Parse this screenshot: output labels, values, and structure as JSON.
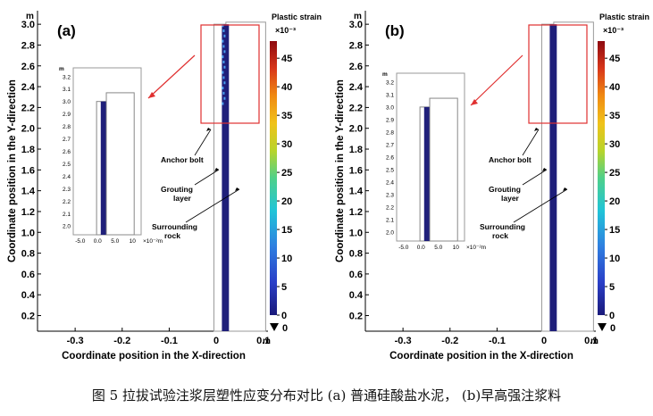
{
  "caption": "图 5 拉拔试验注浆层塑性应变分布对比 (a) 普通硅酸盐水泥，  (b)早高强注浆料",
  "chart_data": [
    {
      "type": "contour",
      "panel_label": "(a)",
      "xlabel": "Coordinate position in the X-direction",
      "ylabel": "Coordinate position in the Y-direction",
      "x_unit": "m",
      "y_unit": "m",
      "x_ticks": [
        "-0.3",
        "-0.2",
        "-0.1",
        "0",
        "0.1"
      ],
      "y_ticks": [
        "0.2",
        "0.4",
        "0.6",
        "0.8",
        "1.0",
        "1.2",
        "1.4",
        "1.6",
        "1.8",
        "2.0",
        "2.2",
        "2.4",
        "2.6",
        "2.8",
        "3.0"
      ],
      "xlim": [
        -0.38,
        0.11
      ],
      "ylim": [
        0.05,
        3.13
      ],
      "colorbar": {
        "title": "Plastic strain",
        "multiplier": "×10⁻³",
        "ticks": [
          "45",
          "40",
          "35",
          "30",
          "25",
          "20",
          "15",
          "10",
          "5",
          "0"
        ],
        "min_label": "0",
        "range": [
          0,
          48
        ]
      },
      "annotations": [
        "Anchor bolt",
        "Grouting layer",
        "Surrounding rock"
      ],
      "annotation_lines": [
        [
          "Anchor bolt"
        ],
        [
          "Grouting",
          "layer"
        ],
        [
          "Surrounding",
          "rock"
        ]
      ],
      "inset": {
        "y_unit": "m",
        "y_ticks": [
          "2.0",
          "2.1",
          "2.2",
          "2.3",
          "2.4",
          "2.5",
          "2.6",
          "2.7",
          "2.8",
          "2.9",
          "3.0",
          "3.1",
          "3.2"
        ],
        "x_ticks": [
          "-5.0",
          "0.0",
          "5.0",
          "10"
        ],
        "x_unit": "×10⁻²m",
        "ylim": [
          1.93,
          3.27
        ],
        "xlim": [
          -7.0,
          12.5
        ]
      }
    },
    {
      "type": "contour",
      "panel_label": "(b)",
      "xlabel": "Coordinate position in the X-direction",
      "ylabel": "Coordinate position in the Y-direction",
      "x_unit": "m",
      "y_unit": "m",
      "x_ticks": [
        "-0.3",
        "-0.2",
        "-0.1",
        "0",
        "0.1"
      ],
      "y_ticks": [
        "0.2",
        "0.4",
        "0.6",
        "0.8",
        "1.0",
        "1.2",
        "1.4",
        "1.6",
        "1.8",
        "2.0",
        "2.2",
        "2.4",
        "2.6",
        "2.8",
        "3.0"
      ],
      "xlim": [
        -0.38,
        0.11
      ],
      "ylim": [
        0.05,
        3.13
      ],
      "colorbar": {
        "title": "Plastic strain",
        "multiplier": "×10⁻³",
        "ticks": [
          "45",
          "40",
          "35",
          "30",
          "25",
          "20",
          "15",
          "10",
          "5",
          "0"
        ],
        "min_label": "0",
        "range": [
          0,
          48
        ]
      },
      "annotations": [
        "Anchor bolt",
        "Grouting layer",
        "Surrounding rock"
      ],
      "annotation_lines": [
        [
          "Anchor bolt"
        ],
        [
          "Grouting",
          "layer"
        ],
        [
          "Surrounding",
          "rock"
        ]
      ],
      "inset": {
        "y_unit": "m",
        "y_ticks": [
          "2.0",
          "2.1",
          "2.2",
          "2.3",
          "2.4",
          "2.5",
          "2.6",
          "2.7",
          "2.8",
          "2.9",
          "3.0",
          "3.1",
          "3.2"
        ],
        "x_ticks": [
          "-5.0",
          "0.0",
          "5.0",
          "10"
        ],
        "x_unit": "×10⁻²m",
        "ylim": [
          1.93,
          3.27
        ],
        "xlim": [
          -7.0,
          12.5
        ]
      }
    }
  ]
}
